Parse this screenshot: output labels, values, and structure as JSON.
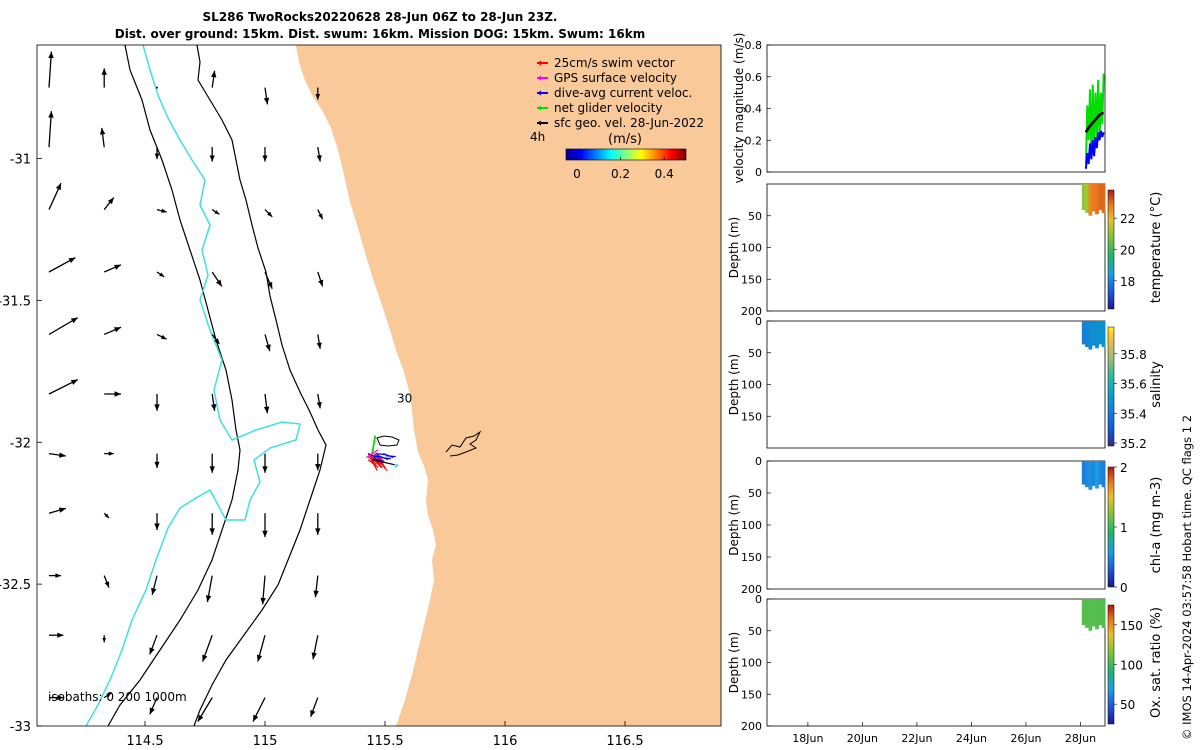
{
  "figure": {
    "title_line1": "SL286 TwoRocks20220628 28-Jun 06Z to 28-Jun 23Z.",
    "title_line2": "Dist. over ground: 15km. Dist. swum: 16km. Mission DOG: 15km. Swum: 16km",
    "credit": "© IMOS 14-Apr-2024 03:57:58 Hobart time. QC flags 1  2"
  },
  "colors": {
    "land": "#f9c99a",
    "isobath_0_200": "#000000",
    "isobath_1000": "#40e0e0",
    "swim_vector": "#ff0000",
    "gps_surface": "#ff00ff",
    "dive_avg": "#0000ff",
    "net_glider": "#00dd00",
    "sfc_geo": "#000000"
  },
  "chart_data": [
    {
      "type": "map",
      "xlim": [
        114.05,
        116.9
      ],
      "ylim": [
        -33.0,
        -30.6
      ],
      "xticks": [
        "114.5",
        "115",
        "115.5",
        "116",
        "116.5"
      ],
      "xtick_values": [
        114.5,
        115,
        115.5,
        116,
        116.5
      ],
      "yticks": [
        "-31",
        "-31.5",
        "-32",
        "-32.5",
        "-33"
      ],
      "ytick_values": [
        -31,
        -31.5,
        -32,
        -32.5,
        -33
      ],
      "legend": [
        {
          "label": "25cm/s swim vector",
          "color": "#ff0000"
        },
        {
          "label": "GPS surface velocity",
          "color": "#ff00ff"
        },
        {
          "label": "dive-avg current veloc.",
          "color": "#0000ff"
        },
        {
          "label": "net glider velocity",
          "color": "#00dd00"
        },
        {
          "label": "sfc geo. vel. 28-Jun-2022",
          "color": "#000000"
        }
      ],
      "duration_label": "4h",
      "colorbar": {
        "title": "(m/s)",
        "ticks": [
          "0",
          "0.2",
          "0.4"
        ],
        "tick_values": [
          0,
          0.2,
          0.4
        ],
        "range": [
          -0.05,
          0.5
        ]
      },
      "annotations": [
        {
          "text": "30",
          "lon": 115.55,
          "lat": -31.86
        }
      ],
      "isobaths_label": "isobaths: 0   200  1000m",
      "glider_position": {
        "lon": 115.43,
        "lat": -32.04
      },
      "current_vectors": [
        {
          "lon": 114.1,
          "lat": -30.75,
          "u": 0.02,
          "v": 0.3
        },
        {
          "lon": 114.33,
          "lat": -30.75,
          "u": 0.0,
          "v": 0.16
        },
        {
          "lon": 114.55,
          "lat": -30.75,
          "u": 0.0,
          "v": 0.0
        },
        {
          "lon": 114.78,
          "lat": -30.75,
          "u": 0.02,
          "v": 0.14
        },
        {
          "lon": 115.0,
          "lat": -30.75,
          "u": 0.02,
          "v": -0.14
        },
        {
          "lon": 115.22,
          "lat": -30.75,
          "u": 0.0,
          "v": -0.1
        },
        {
          "lon": 114.1,
          "lat": -30.96,
          "u": 0.02,
          "v": 0.3
        },
        {
          "lon": 114.33,
          "lat": -30.96,
          "u": -0.02,
          "v": 0.16
        },
        {
          "lon": 114.55,
          "lat": -30.96,
          "u": 0.0,
          "v": -0.1
        },
        {
          "lon": 114.78,
          "lat": -30.96,
          "u": 0.0,
          "v": -0.12
        },
        {
          "lon": 115.0,
          "lat": -30.96,
          "u": 0.0,
          "v": -0.12
        },
        {
          "lon": 115.22,
          "lat": -30.96,
          "u": 0.02,
          "v": -0.12
        },
        {
          "lon": 114.1,
          "lat": -31.18,
          "u": 0.1,
          "v": 0.22
        },
        {
          "lon": 114.33,
          "lat": -31.18,
          "u": 0.08,
          "v": 0.1
        },
        {
          "lon": 114.55,
          "lat": -31.18,
          "u": 0.08,
          "v": -0.02
        },
        {
          "lon": 114.78,
          "lat": -31.18,
          "u": 0.06,
          "v": -0.04
        },
        {
          "lon": 115.0,
          "lat": -31.18,
          "u": 0.06,
          "v": -0.06
        },
        {
          "lon": 115.22,
          "lat": -31.18,
          "u": 0.04,
          "v": -0.08
        },
        {
          "lon": 114.1,
          "lat": -31.4,
          "u": 0.22,
          "v": 0.12
        },
        {
          "lon": 114.33,
          "lat": -31.4,
          "u": 0.14,
          "v": 0.06
        },
        {
          "lon": 114.55,
          "lat": -31.4,
          "u": 0.06,
          "v": -0.04
        },
        {
          "lon": 114.78,
          "lat": -31.4,
          "u": 0.08,
          "v": -0.12
        },
        {
          "lon": 115.0,
          "lat": -31.4,
          "u": 0.06,
          "v": -0.14
        },
        {
          "lon": 115.22,
          "lat": -31.4,
          "u": 0.04,
          "v": -0.12
        },
        {
          "lon": 114.1,
          "lat": -31.62,
          "u": 0.24,
          "v": 0.14
        },
        {
          "lon": 114.33,
          "lat": -31.62,
          "u": 0.14,
          "v": 0.06
        },
        {
          "lon": 114.55,
          "lat": -31.62,
          "u": 0.08,
          "v": -0.04
        },
        {
          "lon": 114.78,
          "lat": -31.62,
          "u": 0.06,
          "v": -0.08
        },
        {
          "lon": 115.0,
          "lat": -31.62,
          "u": 0.04,
          "v": -0.14
        },
        {
          "lon": 115.22,
          "lat": -31.62,
          "u": 0.02,
          "v": -0.12
        },
        {
          "lon": 114.1,
          "lat": -31.83,
          "u": 0.24,
          "v": 0.12
        },
        {
          "lon": 114.33,
          "lat": -31.83,
          "u": 0.14,
          "v": 0.0
        },
        {
          "lon": 114.55,
          "lat": -31.83,
          "u": 0.0,
          "v": -0.14
        },
        {
          "lon": 114.78,
          "lat": -31.83,
          "u": 0.02,
          "v": -0.14
        },
        {
          "lon": 115.0,
          "lat": -31.83,
          "u": 0.02,
          "v": -0.16
        },
        {
          "lon": 115.22,
          "lat": -31.83,
          "u": 0.02,
          "v": -0.12
        },
        {
          "lon": 114.1,
          "lat": -32.04,
          "u": 0.14,
          "v": -0.02
        },
        {
          "lon": 114.33,
          "lat": -32.04,
          "u": 0.08,
          "v": 0.0
        },
        {
          "lon": 114.55,
          "lat": -32.04,
          "u": 0.0,
          "v": -0.12
        },
        {
          "lon": 114.78,
          "lat": -32.04,
          "u": 0.0,
          "v": -0.16
        },
        {
          "lon": 115.0,
          "lat": -32.04,
          "u": 0.0,
          "v": -0.16
        },
        {
          "lon": 115.22,
          "lat": -32.04,
          "u": 0.0,
          "v": -0.14
        },
        {
          "lon": 114.1,
          "lat": -32.25,
          "u": 0.14,
          "v": 0.04
        },
        {
          "lon": 114.33,
          "lat": -32.25,
          "u": 0.04,
          "v": -0.04
        },
        {
          "lon": 114.55,
          "lat": -32.25,
          "u": 0.0,
          "v": -0.14
        },
        {
          "lon": 114.78,
          "lat": -32.25,
          "u": 0.0,
          "v": -0.18
        },
        {
          "lon": 115.0,
          "lat": -32.25,
          "u": 0.0,
          "v": -0.2
        },
        {
          "lon": 115.22,
          "lat": -32.25,
          "u": 0.0,
          "v": -0.18
        },
        {
          "lon": 114.1,
          "lat": -32.47,
          "u": 0.1,
          "v": 0.0
        },
        {
          "lon": 114.33,
          "lat": -32.47,
          "u": 0.04,
          "v": -0.1
        },
        {
          "lon": 114.55,
          "lat": -32.47,
          "u": -0.04,
          "v": -0.16
        },
        {
          "lon": 114.78,
          "lat": -32.47,
          "u": -0.04,
          "v": -0.22
        },
        {
          "lon": 115.0,
          "lat": -32.47,
          "u": -0.02,
          "v": -0.24
        },
        {
          "lon": 115.22,
          "lat": -32.47,
          "u": -0.02,
          "v": -0.18
        },
        {
          "lon": 114.1,
          "lat": -32.68,
          "u": 0.12,
          "v": 0.0
        },
        {
          "lon": 114.33,
          "lat": -32.68,
          "u": 0.0,
          "v": -0.06
        },
        {
          "lon": 114.55,
          "lat": -32.68,
          "u": -0.06,
          "v": -0.16
        },
        {
          "lon": 114.78,
          "lat": -32.68,
          "u": -0.08,
          "v": -0.22
        },
        {
          "lon": 115.0,
          "lat": -32.68,
          "u": -0.06,
          "v": -0.22
        },
        {
          "lon": 115.22,
          "lat": -32.68,
          "u": -0.04,
          "v": -0.2
        },
        {
          "lon": 114.1,
          "lat": -32.9,
          "u": 0.12,
          "v": 0.0
        },
        {
          "lon": 114.33,
          "lat": -32.9,
          "u": 0.06,
          "v": 0.04
        },
        {
          "lon": 114.55,
          "lat": -32.9,
          "u": -0.06,
          "v": -0.14
        },
        {
          "lon": 114.78,
          "lat": -32.9,
          "u": -0.12,
          "v": -0.2
        },
        {
          "lon": 115.0,
          "lat": -32.9,
          "u": -0.1,
          "v": -0.2
        },
        {
          "lon": 115.22,
          "lat": -32.9,
          "u": -0.06,
          "v": -0.16
        }
      ]
    },
    {
      "type": "line",
      "ylabel": "velocity magnitude (m/s)",
      "ylim": [
        0,
        0.8
      ],
      "yticks": [
        "0",
        "0.2",
        "0.4",
        "0.6",
        "0.8"
      ],
      "ytick_values": [
        0,
        0.2,
        0.4,
        0.6,
        0.8
      ],
      "x_range_days": [
        16.5,
        28.9
      ],
      "series": [
        {
          "color": "#00dd00",
          "x": [
            28.2,
            28.25,
            28.3,
            28.35,
            28.4,
            28.45,
            28.5,
            28.55,
            28.6,
            28.65,
            28.7,
            28.75,
            28.8,
            28.85
          ],
          "y": [
            0.05,
            0.42,
            0.2,
            0.52,
            0.1,
            0.55,
            0.15,
            0.5,
            0.22,
            0.58,
            0.2,
            0.5,
            0.3,
            0.62
          ]
        },
        {
          "color": "#0000ff",
          "x": [
            28.2,
            28.25,
            28.3,
            28.35,
            28.4,
            28.45,
            28.5,
            28.55,
            28.6,
            28.65,
            28.7,
            28.75,
            28.8,
            28.85
          ],
          "y": [
            0.02,
            0.12,
            0.05,
            0.18,
            0.08,
            0.2,
            0.1,
            0.22,
            0.15,
            0.25,
            0.2,
            0.26,
            0.22,
            0.25
          ]
        },
        {
          "color": "#000000",
          "x": [
            28.2,
            28.3,
            28.4,
            28.5,
            28.6,
            28.7,
            28.8,
            28.85
          ],
          "y": [
            0.25,
            0.28,
            0.3,
            0.32,
            0.34,
            0.36,
            0.37,
            0.37
          ]
        }
      ]
    },
    {
      "type": "heatmap",
      "ylabel": "Depth (m)",
      "ylim": [
        0,
        200
      ],
      "yticks": [
        "50",
        "100",
        "150",
        "200"
      ],
      "ytick_values": [
        50,
        100,
        150,
        200
      ],
      "colorbar": {
        "label": "temperature (°C)",
        "ticks": [
          "18",
          "20",
          "22"
        ],
        "tick_values": [
          18,
          20,
          22
        ],
        "range": [
          16.2,
          23.8
        ]
      },
      "x_start": 28.05,
      "x_end": 28.9,
      "depth_max": 50,
      "value_columns": [
        21.0,
        21.2,
        22.6,
        22.8,
        22.9,
        23.0,
        23.0
      ]
    },
    {
      "type": "heatmap",
      "ylabel": "Depth (m)",
      "ylim": [
        0,
        200
      ],
      "yticks": [
        "0",
        "50",
        "100",
        "150"
      ],
      "ytick_values": [
        0,
        50,
        100,
        150
      ],
      "colorbar": {
        "label": "salinity",
        "ticks": [
          "35.2",
          "35.4",
          "35.6",
          "35.8"
        ],
        "tick_values": [
          35.2,
          35.4,
          35.6,
          35.8
        ],
        "range": [
          35.18,
          35.98
        ]
      },
      "x_start": 28.05,
      "x_end": 28.9,
      "depth_max": 45,
      "value_columns": [
        35.42,
        35.43,
        35.45,
        35.46,
        35.47,
        35.47,
        35.47
      ]
    },
    {
      "type": "heatmap",
      "ylabel": "Depth (m)",
      "ylim": [
        0,
        200
      ],
      "yticks": [
        "0",
        "50",
        "100",
        "150",
        "200"
      ],
      "ytick_values": [
        0,
        50,
        100,
        150,
        200
      ],
      "colorbar": {
        "label": "chl-a (mg m-3)",
        "ticks": [
          "0",
          "1",
          "2"
        ],
        "tick_values": [
          0,
          1,
          2
        ],
        "range": [
          0,
          2
        ]
      },
      "x_start": 28.05,
      "x_end": 28.9,
      "depth_max": 45,
      "value_columns": [
        0.45,
        0.5,
        0.55,
        0.5,
        0.6,
        0.5,
        0.45
      ]
    },
    {
      "type": "heatmap",
      "ylabel": "Depth (m)",
      "ylim": [
        0,
        200
      ],
      "yticks": [
        "0",
        "50",
        "100",
        "150",
        "200"
      ],
      "ytick_values": [
        0,
        50,
        100,
        150,
        200
      ],
      "colorbar": {
        "label": "Ox. sat. ratio (%)",
        "ticks": [
          "50",
          "100",
          "150"
        ],
        "tick_values": [
          50,
          100,
          150
        ],
        "range": [
          25,
          175
        ]
      },
      "x_start": 28.05,
      "x_end": 28.9,
      "depth_max": 50,
      "value_columns": [
        105,
        105,
        106,
        106,
        105,
        105,
        104
      ],
      "xticks": [
        "18Jun",
        "20Jun",
        "22Jun",
        "24Jun",
        "26Jun",
        "28Jun"
      ],
      "xtick_values": [
        18,
        20,
        22,
        24,
        26,
        28
      ]
    }
  ]
}
